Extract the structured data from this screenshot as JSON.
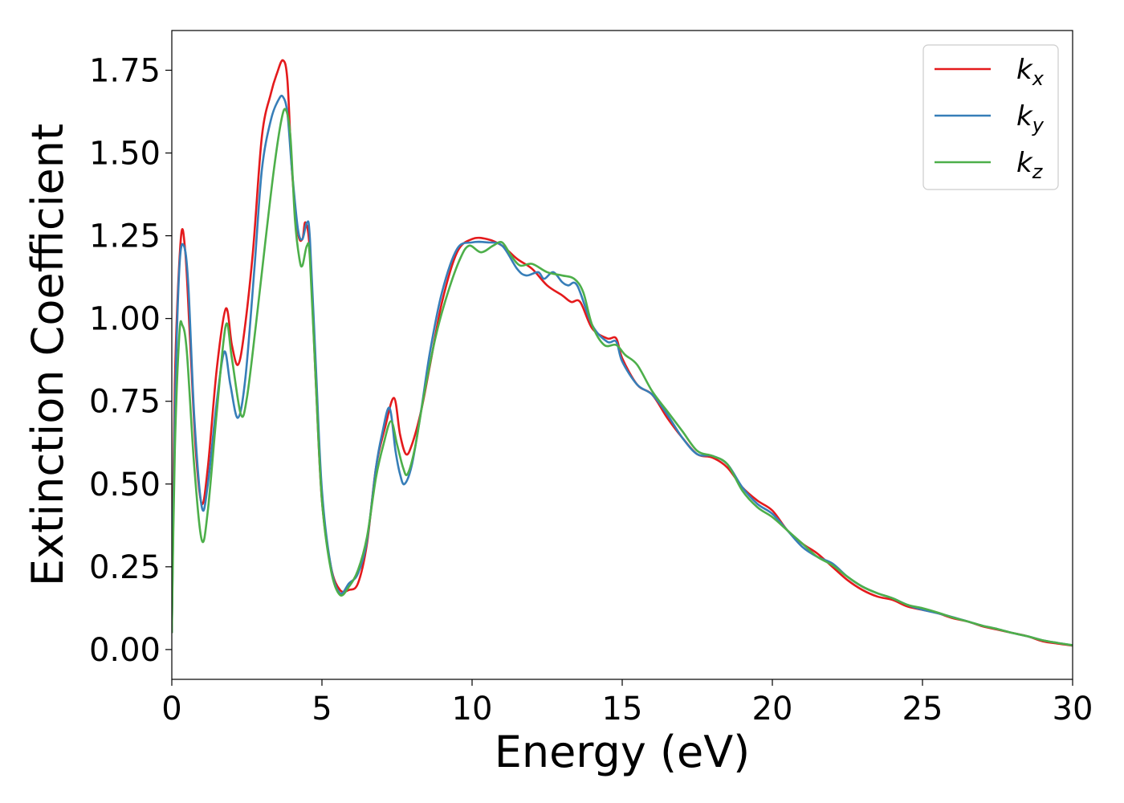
{
  "chart_data": {
    "type": "line",
    "title": "",
    "xlabel": "Energy (eV)",
    "ylabel": "Extinction Coefficient",
    "xlim": [
      0,
      30
    ],
    "ylim": [
      -0.09,
      1.87
    ],
    "xticks": [
      0,
      5,
      10,
      15,
      20,
      25,
      30
    ],
    "xtick_labels": [
      "0",
      "5",
      "10",
      "15",
      "20",
      "25",
      "30"
    ],
    "yticks": [
      0,
      0.25,
      0.5,
      0.75,
      1.0,
      1.25,
      1.5,
      1.75
    ],
    "ytick_labels": [
      "0.00",
      "0.25",
      "0.50",
      "0.75",
      "1.00",
      "1.25",
      "1.50",
      "1.75"
    ],
    "grid": false,
    "legend_position": "top-right",
    "series": [
      {
        "name": "k",
        "subscript": "x",
        "color": "#e41a1c",
        "points": [
          [
            0,
            0.05
          ],
          [
            0.1,
            0.8
          ],
          [
            0.3,
            1.24
          ],
          [
            0.45,
            1.2
          ],
          [
            0.6,
            0.95
          ],
          [
            0.8,
            0.6
          ],
          [
            1.0,
            0.44
          ],
          [
            1.2,
            0.55
          ],
          [
            1.5,
            0.85
          ],
          [
            1.8,
            1.03
          ],
          [
            2.0,
            0.92
          ],
          [
            2.2,
            0.86
          ],
          [
            2.4,
            0.95
          ],
          [
            2.7,
            1.2
          ],
          [
            3.0,
            1.55
          ],
          [
            3.3,
            1.68
          ],
          [
            3.5,
            1.74
          ],
          [
            3.7,
            1.78
          ],
          [
            3.85,
            1.72
          ],
          [
            4.0,
            1.45
          ],
          [
            4.2,
            1.26
          ],
          [
            4.35,
            1.24
          ],
          [
            4.45,
            1.29
          ],
          [
            4.6,
            1.2
          ],
          [
            4.8,
            0.8
          ],
          [
            5.0,
            0.45
          ],
          [
            5.3,
            0.25
          ],
          [
            5.6,
            0.18
          ],
          [
            5.9,
            0.18
          ],
          [
            6.2,
            0.2
          ],
          [
            6.5,
            0.32
          ],
          [
            6.8,
            0.55
          ],
          [
            7.1,
            0.67
          ],
          [
            7.4,
            0.76
          ],
          [
            7.6,
            0.65
          ],
          [
            7.8,
            0.59
          ],
          [
            8.0,
            0.62
          ],
          [
            8.3,
            0.72
          ],
          [
            8.6,
            0.86
          ],
          [
            9.0,
            1.05
          ],
          [
            9.5,
            1.2
          ],
          [
            10.0,
            1.24
          ],
          [
            10.5,
            1.24
          ],
          [
            11.0,
            1.22
          ],
          [
            11.5,
            1.18
          ],
          [
            12.0,
            1.15
          ],
          [
            12.5,
            1.1
          ],
          [
            13.0,
            1.07
          ],
          [
            13.3,
            1.05
          ],
          [
            13.6,
            1.05
          ],
          [
            14.0,
            0.97
          ],
          [
            14.5,
            0.94
          ],
          [
            14.8,
            0.94
          ],
          [
            15.0,
            0.88
          ],
          [
            15.5,
            0.8
          ],
          [
            16.0,
            0.77
          ],
          [
            16.5,
            0.7
          ],
          [
            17.0,
            0.64
          ],
          [
            17.5,
            0.59
          ],
          [
            18.0,
            0.58
          ],
          [
            18.5,
            0.55
          ],
          [
            19.0,
            0.49
          ],
          [
            19.5,
            0.45
          ],
          [
            20.0,
            0.42
          ],
          [
            20.5,
            0.36
          ],
          [
            21.0,
            0.32
          ],
          [
            21.5,
            0.29
          ],
          [
            22.0,
            0.25
          ],
          [
            22.5,
            0.21
          ],
          [
            23.0,
            0.18
          ],
          [
            23.5,
            0.16
          ],
          [
            24.0,
            0.15
          ],
          [
            24.5,
            0.13
          ],
          [
            25.0,
            0.12
          ],
          [
            25.5,
            0.11
          ],
          [
            26.0,
            0.095
          ],
          [
            26.5,
            0.085
          ],
          [
            27.0,
            0.07
          ],
          [
            27.5,
            0.06
          ],
          [
            28.0,
            0.05
          ],
          [
            28.5,
            0.04
          ],
          [
            29.0,
            0.025
          ],
          [
            29.5,
            0.018
          ],
          [
            30.0,
            0.012
          ]
        ]
      },
      {
        "name": "k",
        "subscript": "y",
        "color": "#377eb8",
        "points": [
          [
            0,
            0.05
          ],
          [
            0.1,
            0.7
          ],
          [
            0.25,
            1.15
          ],
          [
            0.4,
            1.22
          ],
          [
            0.55,
            1.1
          ],
          [
            0.75,
            0.7
          ],
          [
            1.0,
            0.43
          ],
          [
            1.2,
            0.5
          ],
          [
            1.5,
            0.75
          ],
          [
            1.75,
            0.9
          ],
          [
            1.95,
            0.8
          ],
          [
            2.2,
            0.7
          ],
          [
            2.45,
            0.82
          ],
          [
            2.75,
            1.15
          ],
          [
            3.0,
            1.45
          ],
          [
            3.3,
            1.6
          ],
          [
            3.55,
            1.66
          ],
          [
            3.7,
            1.67
          ],
          [
            3.85,
            1.62
          ],
          [
            4.0,
            1.45
          ],
          [
            4.2,
            1.27
          ],
          [
            4.35,
            1.24
          ],
          [
            4.5,
            1.29
          ],
          [
            4.6,
            1.24
          ],
          [
            4.8,
            0.85
          ],
          [
            5.0,
            0.48
          ],
          [
            5.3,
            0.25
          ],
          [
            5.6,
            0.17
          ],
          [
            5.9,
            0.2
          ],
          [
            6.2,
            0.23
          ],
          [
            6.5,
            0.33
          ],
          [
            6.8,
            0.55
          ],
          [
            7.0,
            0.65
          ],
          [
            7.25,
            0.73
          ],
          [
            7.45,
            0.6
          ],
          [
            7.6,
            0.53
          ],
          [
            7.75,
            0.5
          ],
          [
            8.0,
            0.56
          ],
          [
            8.3,
            0.72
          ],
          [
            8.6,
            0.9
          ],
          [
            9.0,
            1.08
          ],
          [
            9.5,
            1.21
          ],
          [
            10.0,
            1.23
          ],
          [
            10.5,
            1.23
          ],
          [
            11.0,
            1.22
          ],
          [
            11.5,
            1.15
          ],
          [
            11.8,
            1.13
          ],
          [
            12.2,
            1.14
          ],
          [
            12.4,
            1.12
          ],
          [
            12.7,
            1.14
          ],
          [
            13.0,
            1.11
          ],
          [
            13.2,
            1.1
          ],
          [
            13.5,
            1.1
          ],
          [
            14.0,
            0.98
          ],
          [
            14.5,
            0.93
          ],
          [
            14.8,
            0.93
          ],
          [
            15.0,
            0.87
          ],
          [
            15.5,
            0.8
          ],
          [
            16.0,
            0.77
          ],
          [
            16.5,
            0.71
          ],
          [
            17.0,
            0.64
          ],
          [
            17.5,
            0.59
          ],
          [
            18.0,
            0.585
          ],
          [
            18.5,
            0.56
          ],
          [
            19.0,
            0.49
          ],
          [
            19.5,
            0.44
          ],
          [
            20.0,
            0.41
          ],
          [
            20.5,
            0.36
          ],
          [
            21.0,
            0.31
          ],
          [
            21.5,
            0.28
          ],
          [
            22.0,
            0.26
          ],
          [
            22.5,
            0.22
          ],
          [
            23.0,
            0.19
          ],
          [
            23.5,
            0.17
          ],
          [
            24.0,
            0.155
          ],
          [
            24.5,
            0.135
          ],
          [
            25.0,
            0.12
          ],
          [
            25.5,
            0.11
          ],
          [
            26.0,
            0.098
          ],
          [
            26.5,
            0.085
          ],
          [
            27.0,
            0.072
          ],
          [
            27.5,
            0.062
          ],
          [
            28.0,
            0.05
          ],
          [
            28.5,
            0.04
          ],
          [
            29.0,
            0.028
          ],
          [
            29.5,
            0.02
          ],
          [
            30.0,
            0.013
          ]
        ]
      },
      {
        "name": "k",
        "subscript": "z",
        "color": "#4daf4a",
        "points": [
          [
            0,
            0.05
          ],
          [
            0.1,
            0.6
          ],
          [
            0.25,
            0.95
          ],
          [
            0.35,
            0.98
          ],
          [
            0.5,
            0.9
          ],
          [
            0.75,
            0.55
          ],
          [
            1.0,
            0.33
          ],
          [
            1.2,
            0.42
          ],
          [
            1.5,
            0.72
          ],
          [
            1.8,
            0.98
          ],
          [
            2.0,
            0.88
          ],
          [
            2.3,
            0.71
          ],
          [
            2.5,
            0.76
          ],
          [
            2.8,
            0.98
          ],
          [
            3.1,
            1.22
          ],
          [
            3.4,
            1.45
          ],
          [
            3.65,
            1.6
          ],
          [
            3.8,
            1.63
          ],
          [
            3.95,
            1.55
          ],
          [
            4.1,
            1.3
          ],
          [
            4.25,
            1.18
          ],
          [
            4.35,
            1.16
          ],
          [
            4.5,
            1.22
          ],
          [
            4.6,
            1.18
          ],
          [
            4.8,
            0.8
          ],
          [
            5.0,
            0.45
          ],
          [
            5.3,
            0.24
          ],
          [
            5.6,
            0.165
          ],
          [
            5.9,
            0.19
          ],
          [
            6.2,
            0.24
          ],
          [
            6.5,
            0.34
          ],
          [
            6.8,
            0.52
          ],
          [
            7.05,
            0.62
          ],
          [
            7.3,
            0.69
          ],
          [
            7.5,
            0.62
          ],
          [
            7.7,
            0.55
          ],
          [
            7.85,
            0.53
          ],
          [
            8.1,
            0.61
          ],
          [
            8.4,
            0.77
          ],
          [
            8.8,
            0.95
          ],
          [
            9.2,
            1.08
          ],
          [
            9.6,
            1.18
          ],
          [
            9.9,
            1.22
          ],
          [
            10.3,
            1.2
          ],
          [
            10.7,
            1.22
          ],
          [
            11.0,
            1.23
          ],
          [
            11.3,
            1.19
          ],
          [
            11.6,
            1.16
          ],
          [
            12.0,
            1.165
          ],
          [
            12.5,
            1.14
          ],
          [
            13.0,
            1.13
          ],
          [
            13.4,
            1.12
          ],
          [
            13.7,
            1.08
          ],
          [
            14.0,
            0.98
          ],
          [
            14.4,
            0.92
          ],
          [
            14.8,
            0.92
          ],
          [
            15.1,
            0.89
          ],
          [
            15.5,
            0.86
          ],
          [
            16.0,
            0.78
          ],
          [
            16.5,
            0.72
          ],
          [
            17.0,
            0.66
          ],
          [
            17.5,
            0.6
          ],
          [
            18.0,
            0.585
          ],
          [
            18.5,
            0.56
          ],
          [
            19.0,
            0.48
          ],
          [
            19.5,
            0.43
          ],
          [
            20.0,
            0.4
          ],
          [
            20.5,
            0.36
          ],
          [
            21.0,
            0.32
          ],
          [
            21.5,
            0.28
          ],
          [
            22.0,
            0.255
          ],
          [
            22.5,
            0.22
          ],
          [
            23.0,
            0.19
          ],
          [
            23.5,
            0.17
          ],
          [
            24.0,
            0.155
          ],
          [
            24.5,
            0.135
          ],
          [
            25.0,
            0.125
          ],
          [
            25.5,
            0.112
          ],
          [
            26.0,
            0.097
          ],
          [
            26.5,
            0.085
          ],
          [
            27.0,
            0.072
          ],
          [
            27.5,
            0.062
          ],
          [
            28.0,
            0.05
          ],
          [
            28.5,
            0.04
          ],
          [
            29.0,
            0.028
          ],
          [
            29.5,
            0.02
          ],
          [
            30.0,
            0.013
          ]
        ]
      }
    ]
  }
}
